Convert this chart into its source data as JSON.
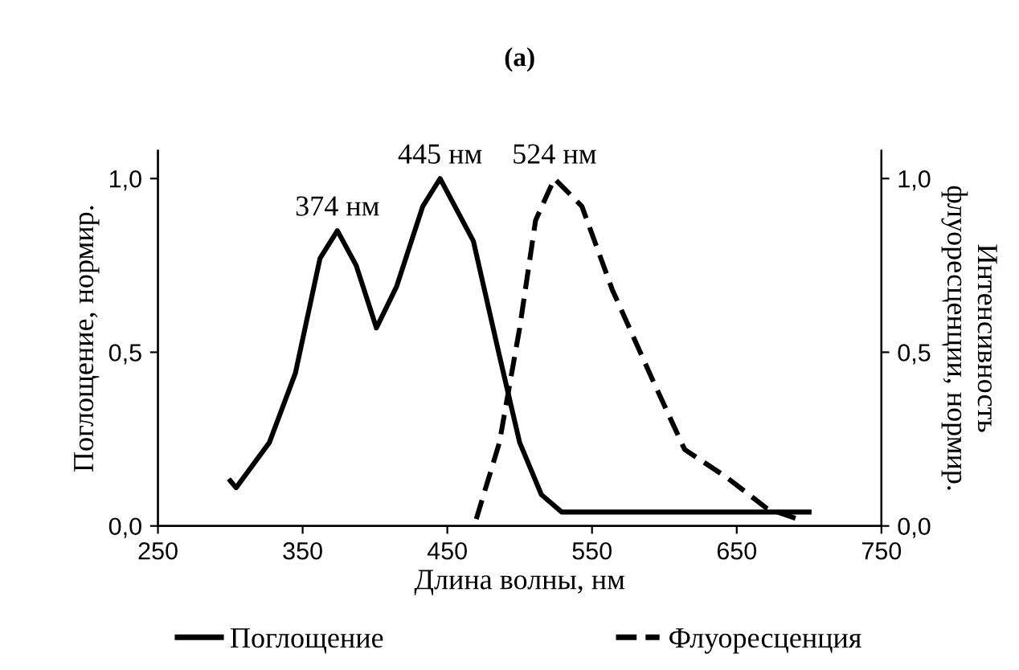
{
  "chart_data": {
    "type": "line",
    "title": "(a)",
    "xlabel": "Длина волны, нм",
    "ylabel": "Поглощение, нормир.",
    "y2label": "Интенсивность\nфлуоресценции, нормир.",
    "xlim": [
      250,
      750
    ],
    "xticks": [
      250,
      350,
      450,
      550,
      650,
      750
    ],
    "ylim": [
      0,
      1.08
    ],
    "yticks": [
      {
        "value": 0,
        "label": "0,0"
      },
      {
        "value": 0.5,
        "label": "0,5"
      },
      {
        "value": 1,
        "label": "1,0"
      }
    ],
    "y2lim": [
      0,
      1.08
    ],
    "y2ticks": [
      {
        "value": 0,
        "label": "0,0"
      },
      {
        "value": 0.5,
        "label": "0,5"
      },
      {
        "value": 1,
        "label": "1,0"
      }
    ],
    "legend": "bottom",
    "grid": false,
    "marker": "none",
    "series": [
      {
        "name": "Поглощение",
        "color": "#000000",
        "line_style": "solid",
        "x": [
          300,
          304,
          327,
          345,
          362,
          374,
          387,
          401,
          415,
          433,
          445,
          468,
          486,
          500,
          515,
          529,
          560,
          700
        ],
        "values": [
          0.13,
          0.11,
          0.24,
          0.44,
          0.77,
          0.85,
          0.75,
          0.57,
          0.69,
          0.92,
          1.0,
          0.82,
          0.49,
          0.24,
          0.09,
          0.04,
          0.04,
          0.04
        ]
      },
      {
        "name": "Флуоресценция",
        "color": "#000000",
        "line_style": "dashed",
        "x": [
          470,
          486,
          500,
          511,
          524,
          543,
          564,
          593,
          614,
          643,
          671,
          692
        ],
        "values": [
          0.02,
          0.24,
          0.57,
          0.88,
          1.0,
          0.92,
          0.68,
          0.41,
          0.22,
          0.14,
          0.05,
          0.02
        ]
      }
    ],
    "annotations": [
      {
        "text": "374 нм",
        "x": 374,
        "y": 0.85
      },
      {
        "text": "445 нм",
        "x": 445,
        "y": 1.0
      },
      {
        "text": "524 нм",
        "x": 524,
        "y": 1.0
      }
    ]
  }
}
